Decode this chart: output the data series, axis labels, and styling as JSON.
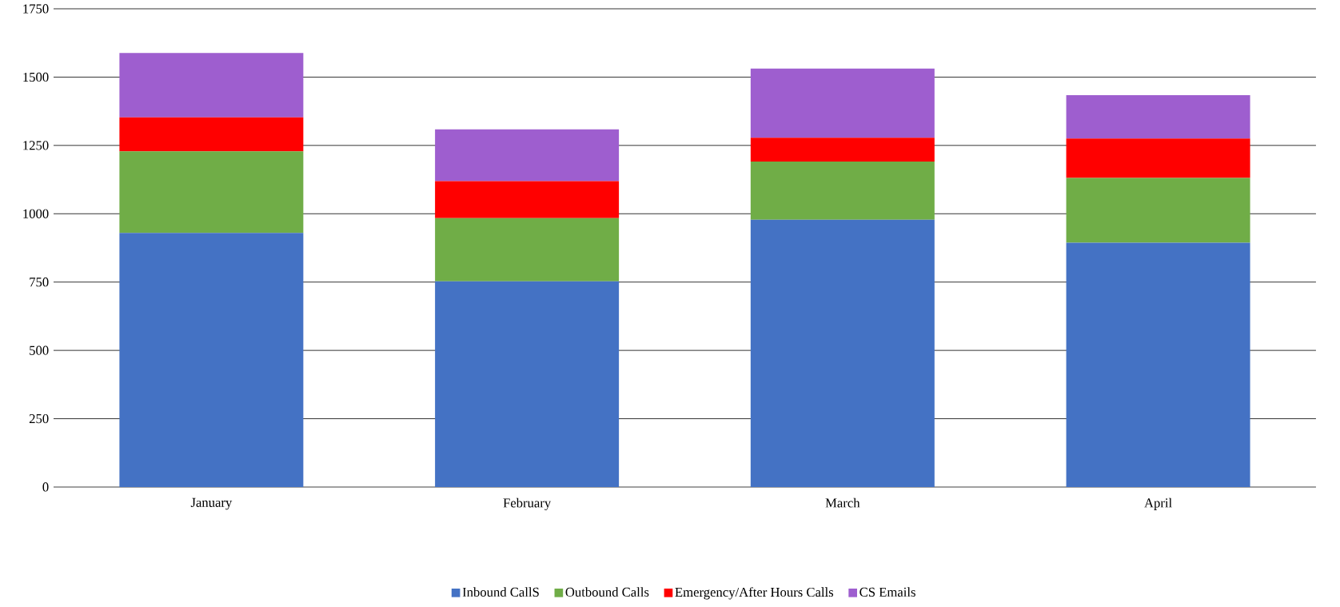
{
  "chart_data": {
    "type": "bar",
    "stacked": true,
    "categories": [
      "January",
      "February",
      "March",
      "April"
    ],
    "series": [
      {
        "name": "Inbound CallS",
        "color": "#4472c4",
        "values": [
          930,
          753,
          978,
          894
        ]
      },
      {
        "name": "Outbound Calls",
        "color": "#70ad47",
        "values": [
          298,
          231,
          213,
          237
        ]
      },
      {
        "name": "Emergency/After Hours Calls",
        "color": "#ff0000",
        "values": [
          125,
          135,
          87,
          144
        ]
      },
      {
        "name": "CS Emails",
        "color": "#9e5ecf",
        "values": [
          235,
          190,
          253,
          159
        ]
      }
    ],
    "ylim": [
      0,
      1750
    ],
    "yticks": [
      0,
      250,
      500,
      750,
      1000,
      1250,
      1500,
      1750
    ],
    "grid": "y",
    "legend": "bottom"
  }
}
